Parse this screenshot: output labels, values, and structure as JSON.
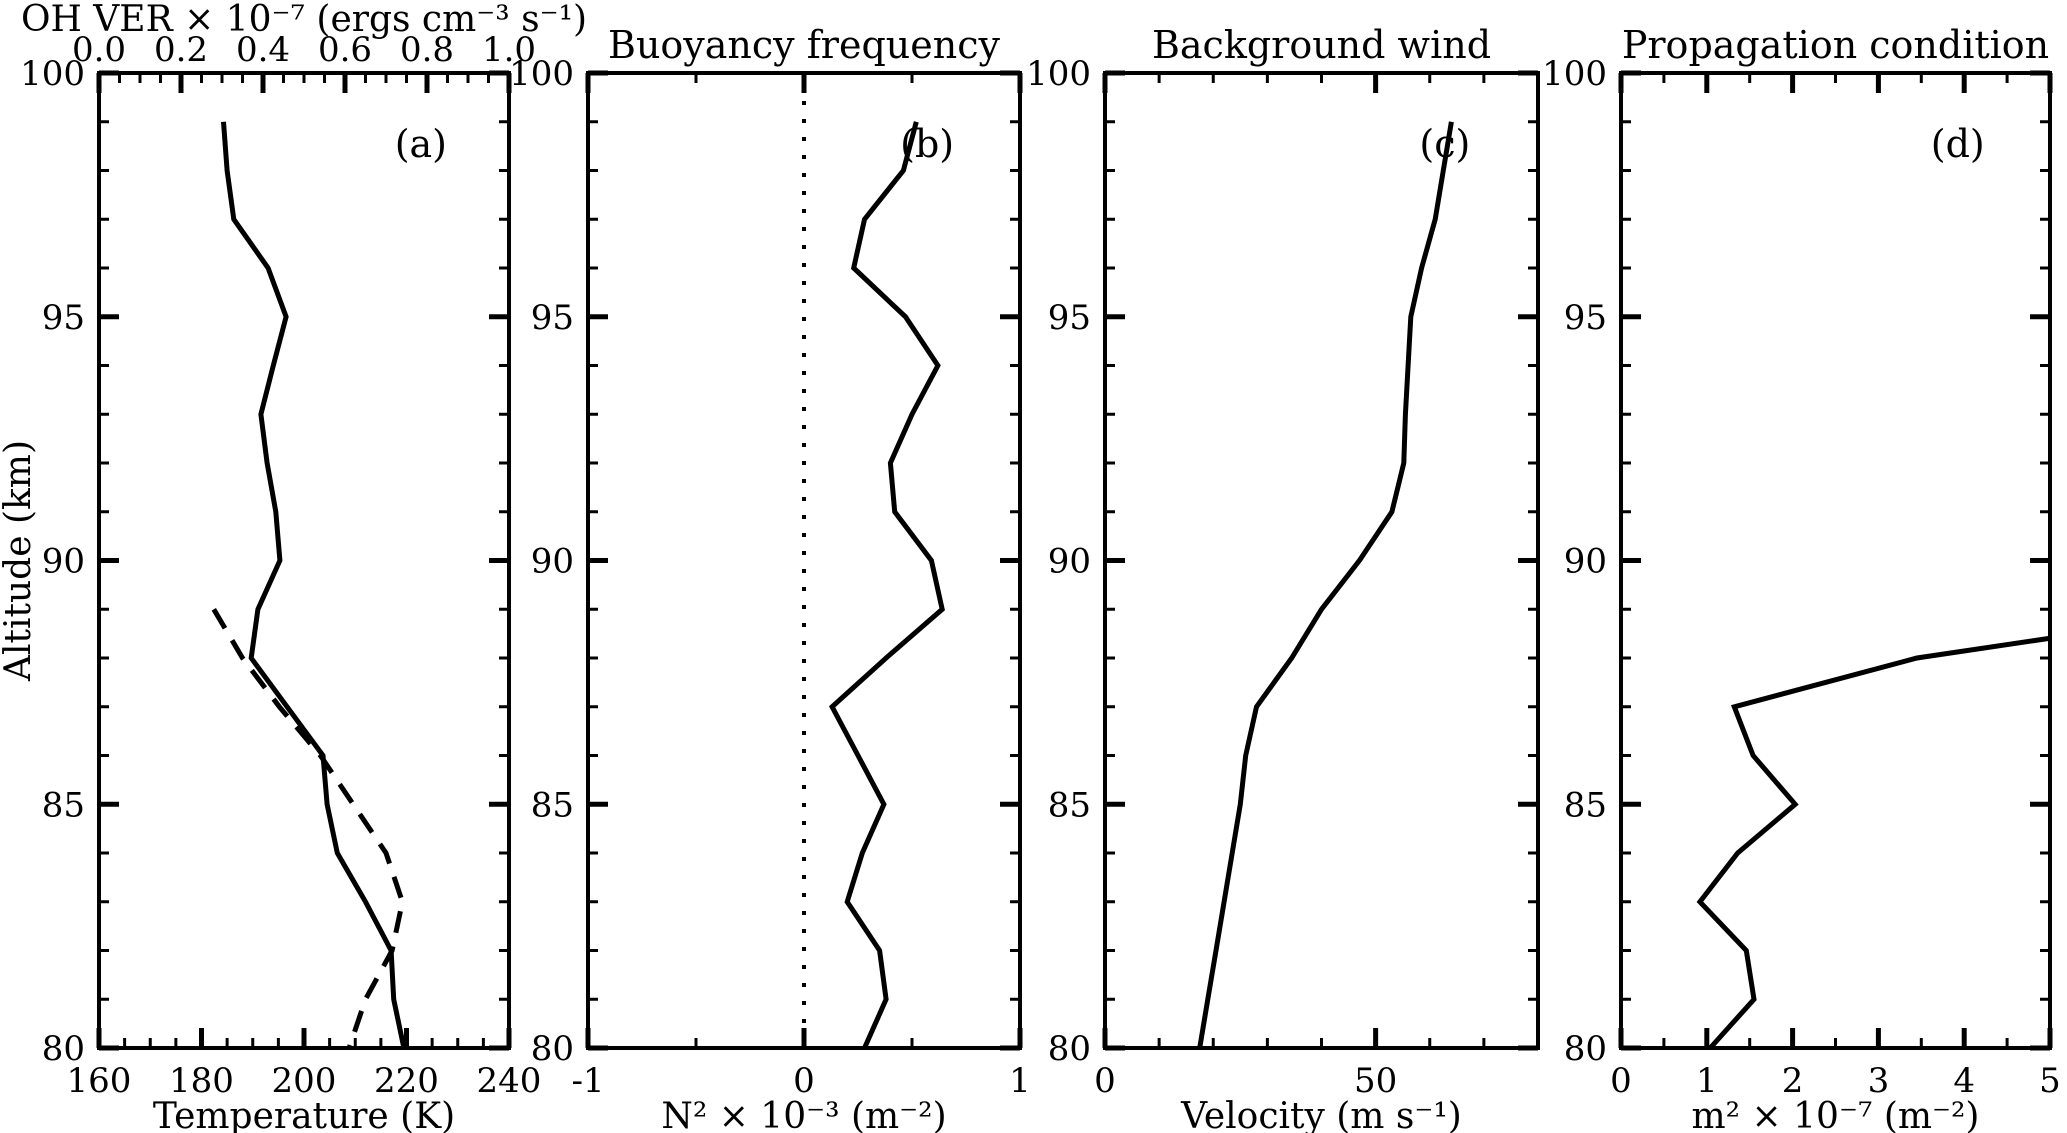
{
  "figure": {
    "y_axis": {
      "label": "Altitude (km)",
      "range": [
        80,
        100
      ],
      "major_ticks": [
        80,
        85,
        90,
        95,
        100
      ],
      "tick_labels": [
        "80",
        "85",
        "90",
        "95",
        "100"
      ],
      "minor_step": 1
    },
    "line_color": "#000000",
    "background_color": "#ffffff"
  },
  "chart_data": [
    {
      "type": "line",
      "panel": "a",
      "panel_label": "(a)",
      "title": "",
      "x_axis": {
        "label": "Temperature (K)",
        "range": [
          160,
          240
        ],
        "major_ticks": [
          160,
          180,
          200,
          220,
          240
        ],
        "tick_labels": [
          "160",
          "180",
          "200",
          "220",
          "240"
        ],
        "minor_step": 5
      },
      "x_axis_top": {
        "label": "OH VER × 10⁻⁷ (ergs cm⁻³ s⁻¹)",
        "range": [
          0,
          1
        ],
        "major_ticks": [
          0,
          0.2,
          0.4,
          0.6,
          0.8,
          1
        ],
        "tick_labels": [
          "0.0",
          "0.2",
          "0.4",
          "0.6",
          "0.8",
          "1.0"
        ],
        "minor_step": 0.05
      },
      "series": [
        {
          "name": "temperature",
          "line_style": "solid",
          "x_scale": "bottom",
          "points": [
            [
              99,
              184.3
            ],
            [
              98,
              185.0
            ],
            [
              97,
              186.3
            ],
            [
              96,
              193.0
            ],
            [
              95,
              196.5
            ],
            [
              94,
              194.0
            ],
            [
              93,
              191.6
            ],
            [
              92,
              192.8
            ],
            [
              91,
              194.5
            ],
            [
              90,
              195.3
            ],
            [
              89,
              191.0
            ],
            [
              88,
              189.7
            ],
            [
              87,
              196.7
            ],
            [
              86,
              203.7
            ],
            [
              85,
              204.5
            ],
            [
              84,
              206.5
            ],
            [
              83,
              212.0
            ],
            [
              82,
              217.0
            ],
            [
              81,
              217.5
            ],
            [
              80,
              219.5
            ]
          ]
        },
        {
          "name": "oh_ver",
          "line_style": "dashed",
          "x_scale": "top",
          "points": [
            [
              89,
              0.28
            ],
            [
              88,
              0.35
            ],
            [
              87,
              0.44
            ],
            [
              86,
              0.54
            ],
            [
              85,
              0.62
            ],
            [
              84,
              0.7
            ],
            [
              83,
              0.74
            ],
            [
              82,
              0.715
            ],
            [
              81,
              0.65
            ],
            [
              80,
              0.61
            ]
          ]
        }
      ]
    },
    {
      "type": "line",
      "panel": "b",
      "panel_label": "(b)",
      "title": "Buoyancy frequency",
      "x_axis": {
        "label": "N² × 10⁻³ (m⁻²)",
        "range": [
          -1,
          1
        ],
        "major_ticks": [
          -1,
          0,
          1
        ],
        "tick_labels": [
          "-1",
          "0",
          "1"
        ],
        "minor_ticks": [
          -0.5,
          0.5
        ]
      },
      "ref_line_x": 0,
      "series": [
        {
          "name": "n_squared",
          "line_style": "solid",
          "x_scale": "bottom",
          "points": [
            [
              99,
              0.52
            ],
            [
              98,
              0.46
            ],
            [
              97,
              0.28
            ],
            [
              96,
              0.23
            ],
            [
              95,
              0.47
            ],
            [
              94,
              0.62
            ],
            [
              93,
              0.5
            ],
            [
              92,
              0.4
            ],
            [
              91,
              0.42
            ],
            [
              90,
              0.59
            ],
            [
              89,
              0.64
            ],
            [
              88,
              0.38
            ],
            [
              87,
              0.13
            ],
            [
              86,
              0.25
            ],
            [
              85,
              0.37
            ],
            [
              84,
              0.27
            ],
            [
              83,
              0.2
            ],
            [
              82,
              0.35
            ],
            [
              81,
              0.38
            ],
            [
              80,
              0.28
            ]
          ]
        }
      ]
    },
    {
      "type": "line",
      "panel": "c",
      "panel_label": "(c)",
      "title": "Background wind",
      "x_axis": {
        "label": "Velocity (m s⁻¹)",
        "range": [
          0,
          80
        ],
        "major_ticks": [
          0,
          50
        ],
        "tick_labels": [
          "0",
          "50"
        ],
        "minor_step": 10
      },
      "series": [
        {
          "name": "background_wind",
          "line_style": "solid",
          "x_scale": "bottom",
          "points": [
            [
              99,
              64
            ],
            [
              98,
              62.5
            ],
            [
              97,
              61
            ],
            [
              96,
              58.5
            ],
            [
              95,
              56.5
            ],
            [
              94,
              56
            ],
            [
              93,
              55.5
            ],
            [
              92,
              55.2
            ],
            [
              91,
              53
            ],
            [
              90,
              47
            ],
            [
              89,
              40
            ],
            [
              88,
              34.5
            ],
            [
              87,
              28
            ],
            [
              86,
              26
            ],
            [
              85,
              25
            ],
            [
              84,
              23.5
            ],
            [
              83,
              22
            ],
            [
              82,
              20.5
            ],
            [
              81,
              19
            ],
            [
              80,
              17.5
            ]
          ]
        }
      ]
    },
    {
      "type": "line",
      "panel": "d",
      "panel_label": "(d)",
      "title": "Propagation condition",
      "x_axis": {
        "label": "m² × 10⁻⁷ (m⁻²)",
        "range": [
          0,
          5
        ],
        "major_ticks": [
          0,
          1,
          2,
          3,
          4,
          5
        ],
        "tick_labels": [
          "0",
          "1",
          "2",
          "3",
          "4",
          "5"
        ],
        "minor_step": 0.5
      },
      "series": [
        {
          "name": "m_squared",
          "line_style": "solid",
          "x_scale": "bottom",
          "points": [
            [
              88.4,
              4.98
            ],
            [
              88,
              3.45
            ],
            [
              87,
              1.32
            ],
            [
              86,
              1.54
            ],
            [
              85,
              2.03
            ],
            [
              84,
              1.36
            ],
            [
              83,
              0.92
            ],
            [
              82,
              1.46
            ],
            [
              81,
              1.55
            ],
            [
              80,
              1.04
            ]
          ]
        }
      ]
    }
  ]
}
